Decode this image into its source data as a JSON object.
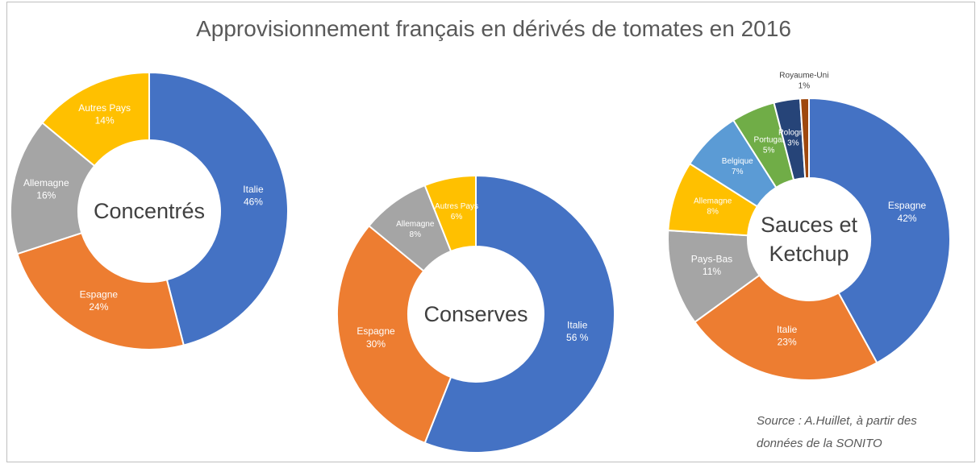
{
  "title": "Approvisionnement français en dérivés de tomates en 2016",
  "source": [
    "Source : A.Huillet, à partir des",
    "données de la SONITO"
  ],
  "chart_data": [
    {
      "type": "donut",
      "title": "Concentrés",
      "categories": [
        "Italie",
        "Espagne",
        "Allemagne",
        "Autres Pays"
      ],
      "values": [
        46,
        24,
        16,
        14
      ],
      "value_labels": [
        "46%",
        "24%",
        "16%",
        "14%"
      ],
      "colors": [
        "#4472c4",
        "#ed7d31",
        "#a5a5a5",
        "#ffc000"
      ]
    },
    {
      "type": "donut",
      "title": "Conserves",
      "categories": [
        "Italie",
        "Espagne",
        "Allemagne",
        "Autres Pays"
      ],
      "values": [
        56,
        30,
        8,
        6
      ],
      "value_labels": [
        "56 %",
        "30%",
        "8%",
        "6%"
      ],
      "colors": [
        "#4472c4",
        "#ed7d31",
        "#a5a5a5",
        "#ffc000"
      ]
    },
    {
      "type": "donut",
      "title": "Sauces et Ketchup",
      "categories": [
        "Espagne",
        "Italie",
        "Pays-Bas",
        "Allemagne",
        "Belgique",
        "Portugal",
        "Pologne",
        "Royaume-Uni"
      ],
      "values": [
        42,
        23,
        11,
        8,
        7,
        5,
        3,
        1
      ],
      "value_labels": [
        "42%",
        "23%",
        "11%",
        "8%",
        "7%",
        "5%",
        "3%",
        "1%"
      ],
      "colors": [
        "#4472c4",
        "#ed7d31",
        "#a5a5a5",
        "#ffc000",
        "#5b9bd5",
        "#70ad47",
        "#264478",
        "#9e480e"
      ]
    }
  ]
}
